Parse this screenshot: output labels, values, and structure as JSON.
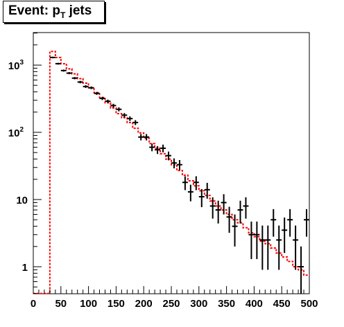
{
  "chart_data": {
    "type": "histogram",
    "title_parts": {
      "main": "Event: p",
      "sub": "T",
      "tail": " jets"
    },
    "xlim": [
      0,
      500
    ],
    "ylim": [
      0.4,
      3000
    ],
    "yscale": "log",
    "x_ticks": [
      "0",
      "50",
      "100",
      "150",
      "200",
      "250",
      "300",
      "350",
      "400",
      "450",
      "500"
    ],
    "y_ticks": [
      {
        "value": 1,
        "base": "1",
        "exp": ""
      },
      {
        "value": 10,
        "base": "10",
        "exp": ""
      },
      {
        "value": 100,
        "base": "10",
        "exp": "2"
      },
      {
        "value": 1000,
        "base": "10",
        "exp": "3"
      }
    ],
    "bin_width": 10,
    "series": [
      {
        "style": "points-with-error-bars",
        "color": "#000000",
        "bin_centers": [
          35,
          45,
          55,
          65,
          75,
          85,
          95,
          105,
          115,
          125,
          135,
          145,
          155,
          165,
          175,
          185,
          195,
          205,
          215,
          225,
          235,
          245,
          255,
          265,
          275,
          285,
          295,
          305,
          315,
          325,
          335,
          345,
          355,
          365,
          375,
          385,
          395,
          405,
          415,
          425,
          435,
          445,
          455,
          465,
          475,
          485,
          495
        ],
        "values": [
          1300,
          1050,
          830,
          760,
          640,
          560,
          480,
          460,
          380,
          320,
          290,
          250,
          220,
          180,
          160,
          140,
          85,
          85,
          60,
          55,
          58,
          45,
          35,
          33,
          18,
          13,
          18,
          11,
          14,
          8,
          7,
          9,
          5.5,
          4,
          7,
          8,
          3,
          3,
          2.5,
          2.5,
          5,
          2.5,
          3.5,
          5,
          2.5,
          1,
          5
        ],
        "errors": [
          36,
          32,
          29,
          28,
          25,
          24,
          22,
          21,
          19,
          18,
          17,
          16,
          15,
          13.4,
          12.6,
          11.8,
          9.2,
          9.2,
          7.7,
          7.4,
          7.6,
          6.7,
          5.9,
          5.7,
          4.2,
          3.6,
          4.2,
          3.3,
          3.7,
          2.8,
          2.6,
          3,
          2.3,
          2,
          2.6,
          2.8,
          1.7,
          1.7,
          1.6,
          1.6,
          2.2,
          1.6,
          1.9,
          2.2,
          1.6,
          1,
          2.2
        ]
      },
      {
        "style": "dashed-step",
        "color": "#ff0000",
        "bin_edges": [
          0,
          10,
          20,
          30,
          40,
          50,
          60,
          70,
          80,
          90,
          100,
          110,
          120,
          130,
          140,
          150,
          160,
          170,
          180,
          190,
          200,
          210,
          220,
          230,
          240,
          250,
          260,
          270,
          280,
          290,
          300,
          310,
          320,
          330,
          340,
          350,
          360,
          370,
          380,
          390,
          400,
          410,
          420,
          430,
          440,
          450,
          460,
          470,
          480,
          490,
          500
        ],
        "values": [
          0.4,
          0.4,
          0.4,
          1600,
          1300,
          1050,
          880,
          740,
          630,
          540,
          460,
          390,
          330,
          275,
          230,
          190,
          165,
          140,
          115,
          98,
          82,
          68,
          58,
          48,
          40,
          33,
          27,
          23,
          19,
          16,
          13.5,
          11.5,
          9.5,
          8,
          7,
          6,
          5,
          4.5,
          3.8,
          3.2,
          2.8,
          2.4,
          2.2,
          1.9,
          1.6,
          1.4,
          1.2,
          1.0,
          0.9,
          0.75
        ]
      }
    ]
  }
}
